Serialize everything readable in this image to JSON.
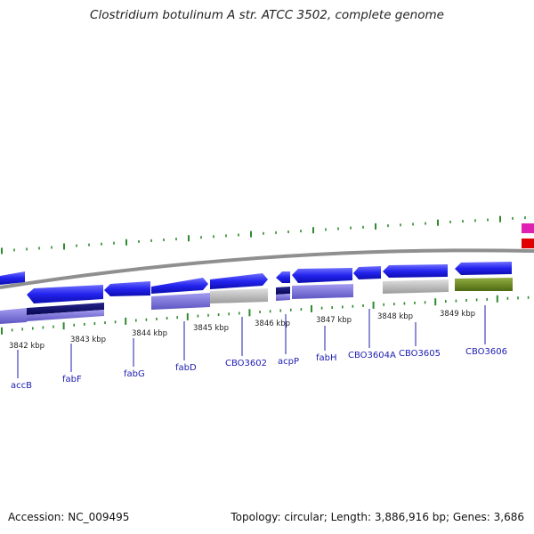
{
  "title": "Clostridium botulinum A str. ATCC 3502, complete genome",
  "accession": "Accession: NC_009495",
  "summary": "Topology: circular; Length: 3,886,916 bp; Genes: 3,686",
  "colors": {
    "cds_forward": "#2020e8",
    "cds_highlight_dark": "#101070",
    "cog_purple": "#7a72d8",
    "cog_gray": "#b8b8b8",
    "cog_olive": "#6a8a20",
    "backbone": "#8a8a8a",
    "tick_green": "#2e8b2e",
    "legend_pink": "#e020b0",
    "legend_red": "#e00000",
    "gene_label": "#1c1cb0"
  },
  "scale_labels": [
    "3842 kbp",
    "3843 kbp",
    "3844 kbp",
    "3845 kbp",
    "3846 kbp",
    "3847 kbp",
    "3848 kbp",
    "3849 kbp"
  ],
  "genes": [
    {
      "name": "accB"
    },
    {
      "name": "fabF"
    },
    {
      "name": "fabG"
    },
    {
      "name": "fabD"
    },
    {
      "name": "CBO3602"
    },
    {
      "name": "acpP"
    },
    {
      "name": "fabH"
    },
    {
      "name": "CBO3604A"
    },
    {
      "name": "CBO3605"
    },
    {
      "name": "CBO3606"
    }
  ]
}
